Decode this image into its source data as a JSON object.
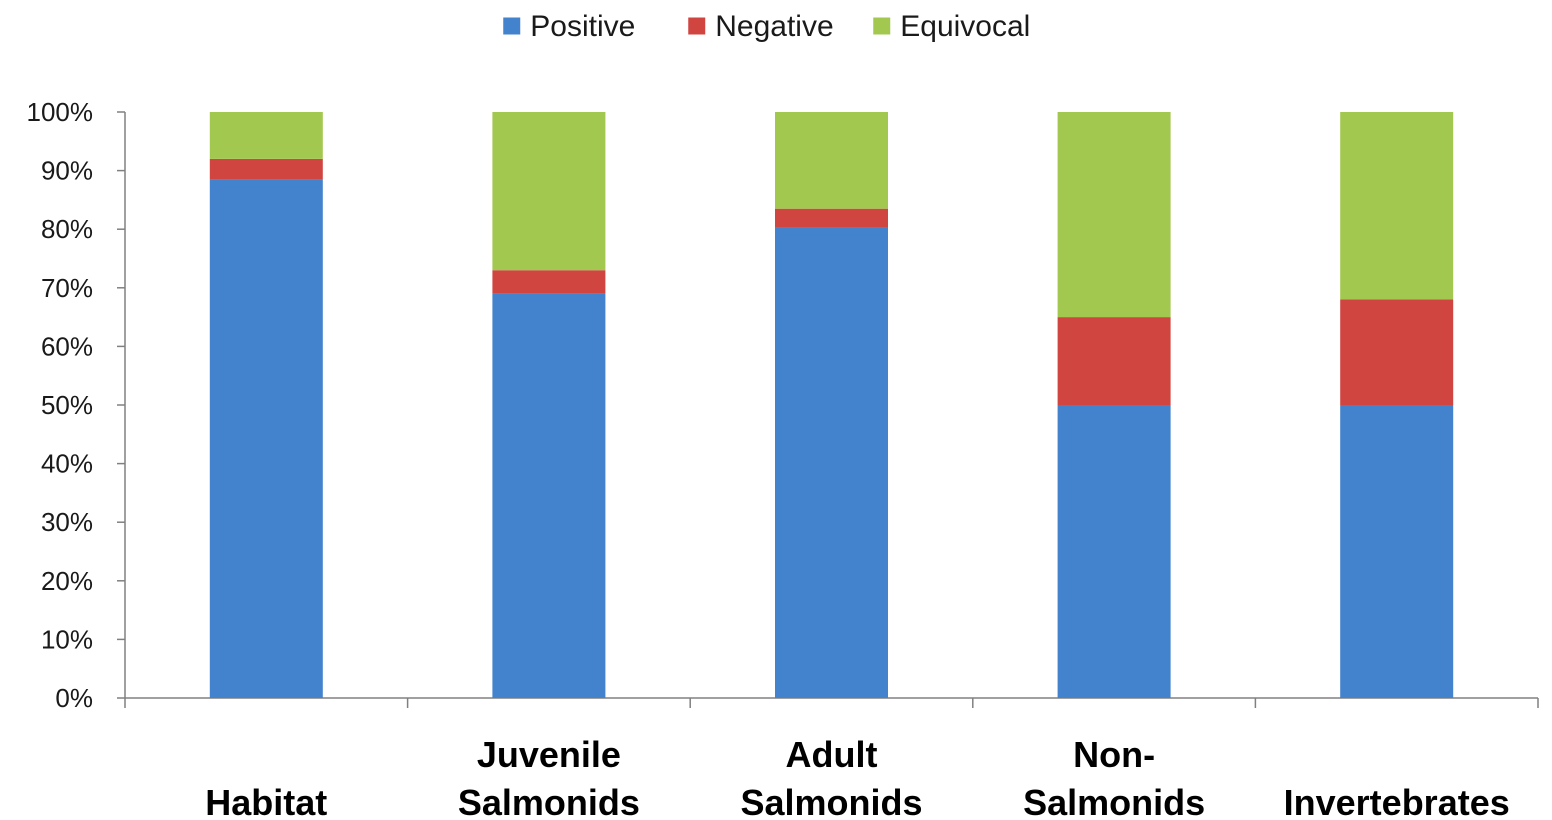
{
  "chart_data": {
    "type": "bar",
    "stacked": true,
    "percent_stacked": true,
    "categories": [
      [
        "Habitat"
      ],
      [
        "Juvenile",
        "Salmonids"
      ],
      [
        "Adult",
        "Salmonids"
      ],
      [
        "Non-",
        "Salmonids"
      ],
      [
        "Invertebrates"
      ]
    ],
    "series": [
      {
        "name": "Positive",
        "color": "#4382cc",
        "values": [
          88.5,
          69,
          80.3,
          50,
          50
        ]
      },
      {
        "name": "Negative",
        "color": "#d14541",
        "values": [
          3.5,
          4,
          3.2,
          15,
          18
        ]
      },
      {
        "name": "Equivocal",
        "color": "#a3c850",
        "values": [
          8,
          27,
          16.5,
          35,
          32
        ]
      }
    ],
    "ylim": [
      0,
      100
    ],
    "yticks": [
      "0%",
      "10%",
      "20%",
      "30%",
      "40%",
      "50%",
      "60%",
      "70%",
      "80%",
      "90%",
      "100%"
    ],
    "title": "",
    "xlabel": "",
    "ylabel": "",
    "legend_position": "top-center",
    "grid": false
  }
}
